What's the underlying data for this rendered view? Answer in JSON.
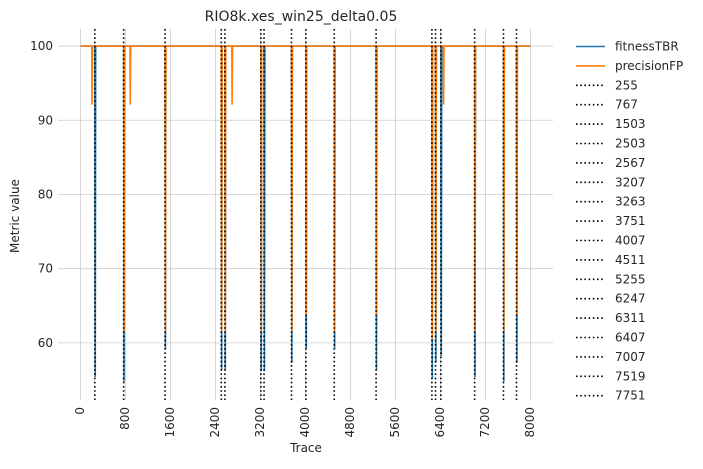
{
  "chart_data": {
    "type": "line",
    "title": "RIO8k.xes_win25_delta0.05",
    "xlabel": "Trace",
    "ylabel": "Metric value",
    "xlim": [
      -400,
      8400
    ],
    "ylim": [
      52.3,
      102.3
    ],
    "xticks": [
      0,
      800,
      1600,
      2400,
      3200,
      4000,
      4800,
      5600,
      6400,
      7200,
      8000
    ],
    "xtick_labels": [
      "0",
      "800",
      "1600",
      "2400",
      "3200",
      "4000",
      "4800",
      "5600",
      "6400",
      "7200",
      "8000"
    ],
    "yticks": [
      60,
      70,
      80,
      90,
      100
    ],
    "ytick_labels": [
      "60",
      "70",
      "80",
      "90",
      "100"
    ],
    "grid": true,
    "legend_position": "outside-right",
    "series": [
      {
        "name": "fitnessTBR",
        "color": "#1f77b4",
        "style": "solid",
        "points": [
          [
            0,
            100
          ],
          [
            255,
            100
          ],
          [
            262,
            55.4
          ],
          [
            270,
            100
          ],
          [
            767,
            100
          ],
          [
            774,
            54.8
          ],
          [
            782,
            100
          ],
          [
            1503,
            100
          ],
          [
            1510,
            59.2
          ],
          [
            1518,
            100
          ],
          [
            2503,
            100
          ],
          [
            2510,
            56.3
          ],
          [
            2518,
            100
          ],
          [
            2567,
            100
          ],
          [
            2574,
            56.3
          ],
          [
            2582,
            100
          ],
          [
            3207,
            100
          ],
          [
            3214,
            56.2
          ],
          [
            3222,
            100
          ],
          [
            3263,
            100
          ],
          [
            3270,
            56.2
          ],
          [
            3278,
            100
          ],
          [
            3751,
            100
          ],
          [
            3758,
            57.3
          ],
          [
            3766,
            100
          ],
          [
            4007,
            100
          ],
          [
            4014,
            59.2
          ],
          [
            4022,
            100
          ],
          [
            4511,
            100
          ],
          [
            4518,
            59.2
          ],
          [
            4526,
            100
          ],
          [
            5255,
            100
          ],
          [
            5262,
            56.3
          ],
          [
            5270,
            100
          ],
          [
            6247,
            100
          ],
          [
            6254,
            55.2
          ],
          [
            6262,
            100
          ],
          [
            6311,
            100
          ],
          [
            6318,
            57.3
          ],
          [
            6326,
            100
          ],
          [
            6407,
            100
          ],
          [
            6414,
            58.2
          ],
          [
            6422,
            100
          ],
          [
            7007,
            100
          ],
          [
            7014,
            55.4
          ],
          [
            7022,
            100
          ],
          [
            7519,
            100
          ],
          [
            7526,
            54.8
          ],
          [
            7534,
            100
          ],
          [
            7751,
            100
          ],
          [
            7758,
            57.3
          ],
          [
            7766,
            100
          ],
          [
            8000,
            100
          ]
        ]
      },
      {
        "name": "precisionFP",
        "color": "#ff7f0e",
        "style": "solid",
        "points": [
          [
            0,
            100
          ],
          [
            200,
            100
          ],
          [
            205,
            92.1
          ],
          [
            215,
            100
          ],
          [
            767,
            100
          ],
          [
            774,
            61.4
          ],
          [
            782,
            100
          ],
          [
            880,
            100
          ],
          [
            885,
            92.1
          ],
          [
            893,
            100
          ],
          [
            1503,
            100
          ],
          [
            1510,
            61.4
          ],
          [
            1518,
            100
          ],
          [
            2503,
            100
          ],
          [
            2510,
            61.4
          ],
          [
            2518,
            100
          ],
          [
            2567,
            100
          ],
          [
            2574,
            61.4
          ],
          [
            2582,
            100
          ],
          [
            2690,
            100
          ],
          [
            2695,
            92.1
          ],
          [
            2703,
            100
          ],
          [
            3207,
            100
          ],
          [
            3214,
            61.4
          ],
          [
            3222,
            100
          ],
          [
            3751,
            100
          ],
          [
            3758,
            61.4
          ],
          [
            3766,
            100
          ],
          [
            4007,
            100
          ],
          [
            4014,
            63.8
          ],
          [
            4022,
            100
          ],
          [
            4511,
            100
          ],
          [
            4518,
            61.4
          ],
          [
            4526,
            100
          ],
          [
            5255,
            100
          ],
          [
            5262,
            63.8
          ],
          [
            5270,
            100
          ],
          [
            6247,
            100
          ],
          [
            6254,
            60.5
          ],
          [
            6262,
            100
          ],
          [
            6311,
            100
          ],
          [
            6318,
            61.4
          ],
          [
            6326,
            100
          ],
          [
            6450,
            100
          ],
          [
            6455,
            92.1
          ],
          [
            6463,
            100
          ],
          [
            7007,
            100
          ],
          [
            7014,
            61.4
          ],
          [
            7022,
            100
          ],
          [
            7519,
            100
          ],
          [
            7526,
            61.4
          ],
          [
            7534,
            100
          ],
          [
            7751,
            100
          ],
          [
            7758,
            63.8
          ],
          [
            7766,
            100
          ],
          [
            8000,
            100
          ]
        ]
      }
    ],
    "vlines": [
      {
        "name": "255",
        "x": 255
      },
      {
        "name": "767",
        "x": 767
      },
      {
        "name": "1503",
        "x": 1503
      },
      {
        "name": "2503",
        "x": 2503
      },
      {
        "name": "2567",
        "x": 2567
      },
      {
        "name": "3207",
        "x": 3207
      },
      {
        "name": "3263",
        "x": 3263
      },
      {
        "name": "3751",
        "x": 3751
      },
      {
        "name": "4007",
        "x": 4007
      },
      {
        "name": "4511",
        "x": 4511
      },
      {
        "name": "5255",
        "x": 5255
      },
      {
        "name": "6247",
        "x": 6247
      },
      {
        "name": "6311",
        "x": 6311
      },
      {
        "name": "6407",
        "x": 6407
      },
      {
        "name": "7007",
        "x": 7007
      },
      {
        "name": "7519",
        "x": 7519
      },
      {
        "name": "7751",
        "x": 7751
      }
    ],
    "vline_color": "#000000"
  }
}
